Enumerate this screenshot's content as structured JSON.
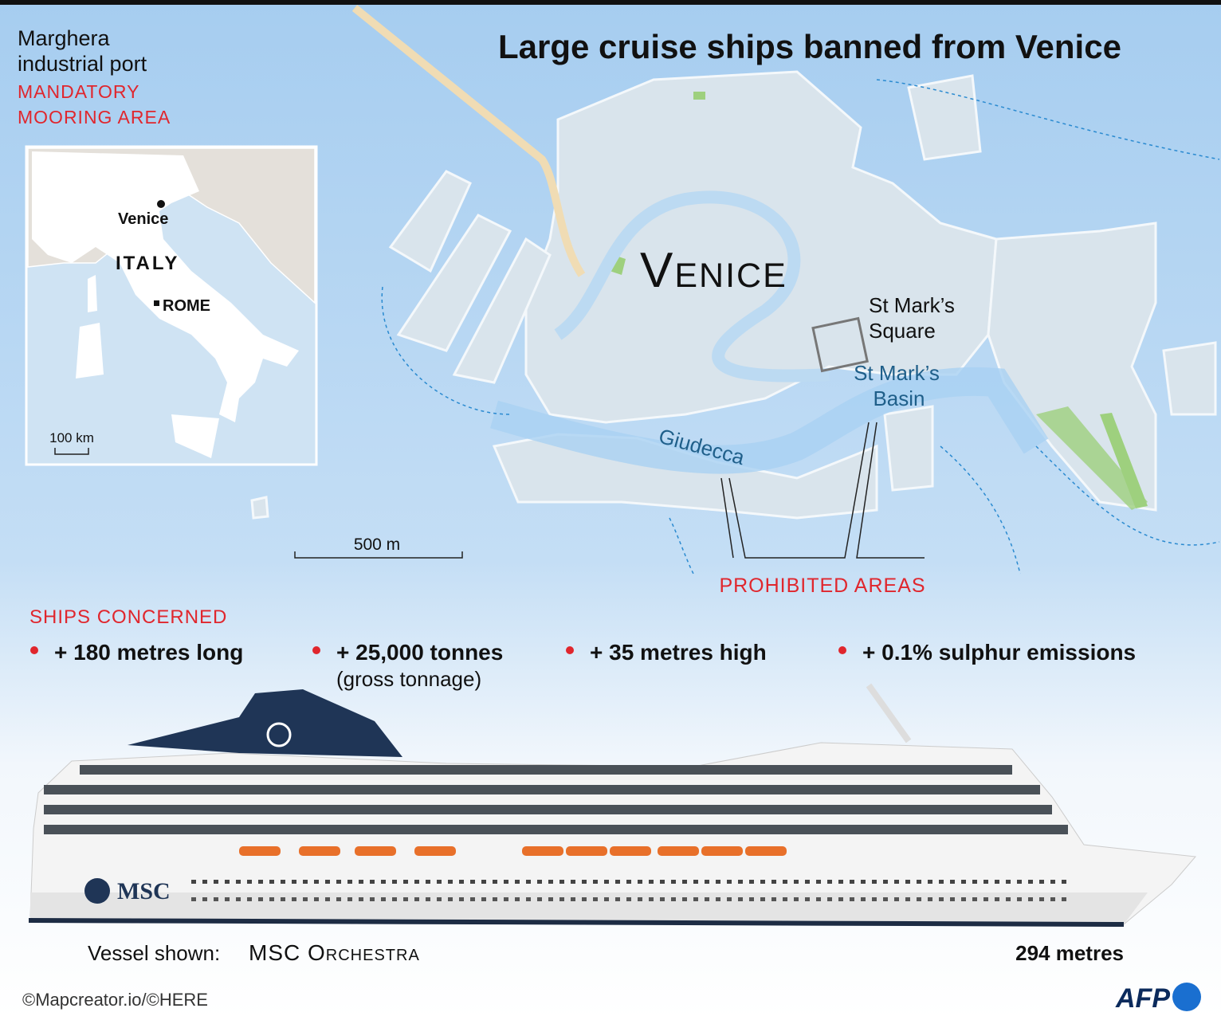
{
  "title": "Large cruise ships banned from Venice",
  "map": {
    "port_label": [
      "Marghera",
      "industrial port"
    ],
    "mooring_label": [
      "MANDATORY",
      "MOORING AREA"
    ],
    "city": "Venice",
    "st_marks_square": [
      "St Mark’s",
      "Square"
    ],
    "st_marks_basin": [
      "St Mark’s",
      "Basin"
    ],
    "giudecca": "Giudecca",
    "scale": "500 m",
    "prohibited": "PROHIBITED AREAS"
  },
  "inset": {
    "venice": "Venice",
    "country": "ITALY",
    "capital": "ROME",
    "scale": "100 km"
  },
  "criteria": {
    "heading": "SHIPS CONCERNED",
    "items": [
      {
        "text": "+ 180 metres long"
      },
      {
        "text": "+ 25,000 tonnes",
        "note": "(gross tonnage)"
      },
      {
        "text": "+ 35 metres high"
      },
      {
        "text": "+ 0.1% sulphur emissions"
      }
    ]
  },
  "vessel": {
    "label": "Vessel shown:",
    "name": "MSC Orchestra",
    "length": "294 metres",
    "logo": "MSC"
  },
  "credit": "©Mapcreator.io/©HERE",
  "agency": "AFP"
}
